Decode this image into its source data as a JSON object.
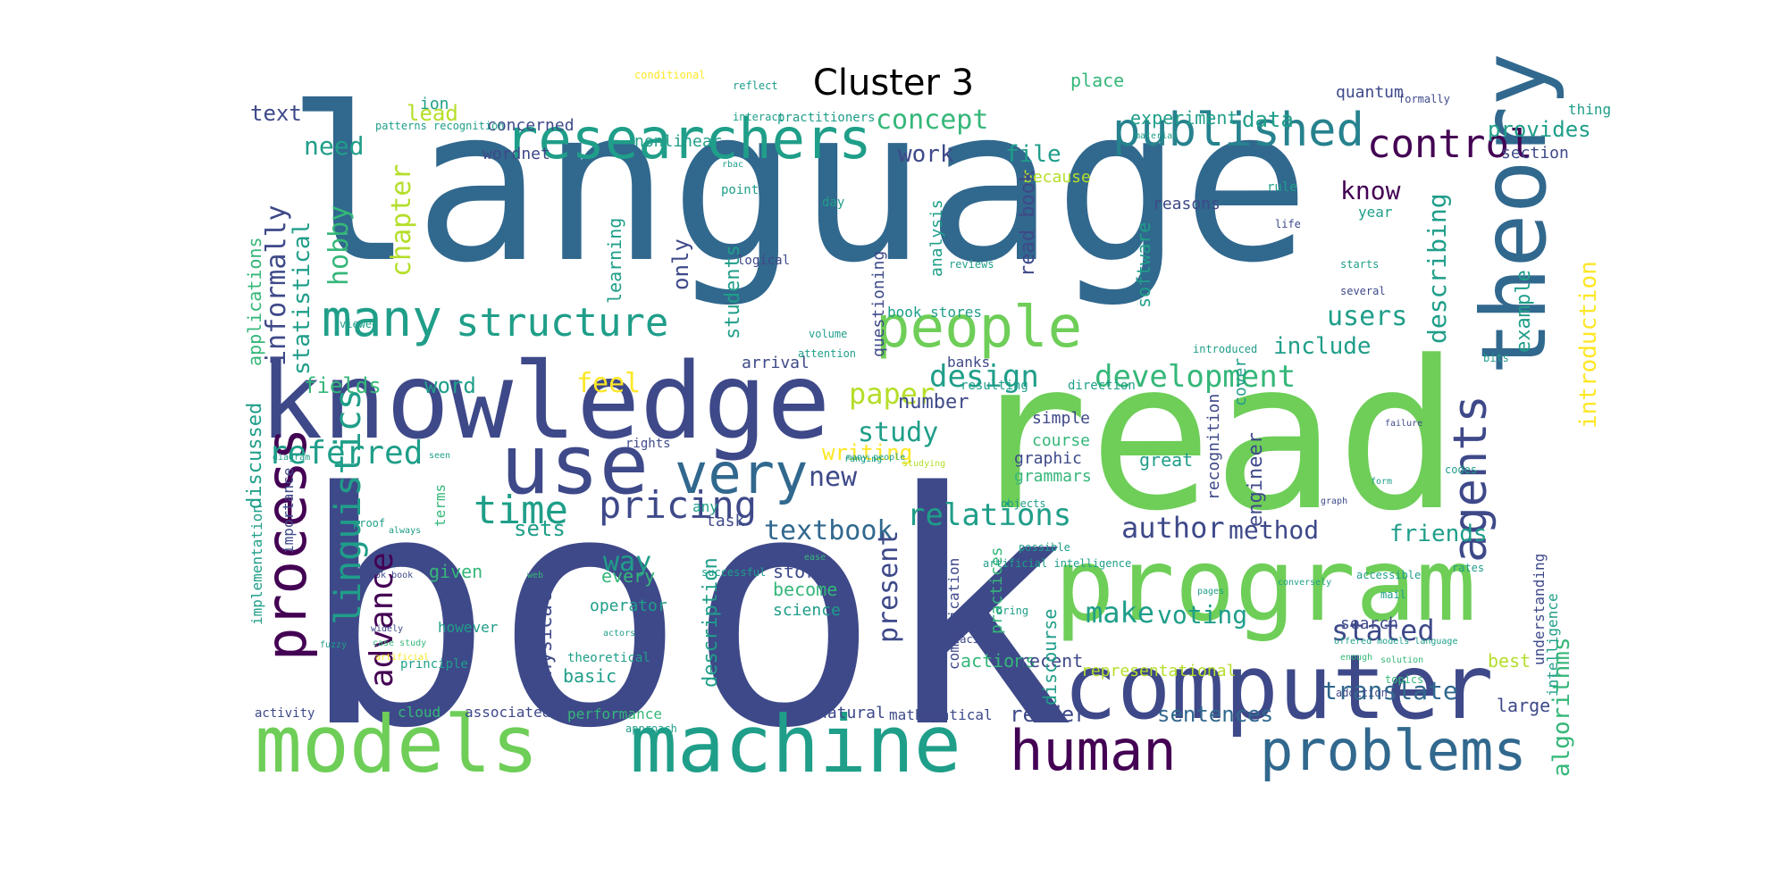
{
  "title": "Cluster 3",
  "colors": {
    "dark_purple": "#440154",
    "indigo": "#3e4989",
    "blue": "#31688e",
    "teal": "#26828e",
    "green_teal": "#1f9e89",
    "green": "#35b779",
    "light_green": "#6ece58",
    "lime": "#b5de2b",
    "yellow": "#fde725"
  },
  "words": [
    "language",
    "book",
    "read",
    "knowledge",
    "program",
    "computer",
    "models",
    "machine",
    "use",
    "theory",
    "researchers",
    "people",
    "published",
    "very",
    "many",
    "structure",
    "process",
    "human",
    "problems",
    "control",
    "agents",
    "time",
    "pricing",
    "linguistics",
    "referred",
    "advance",
    "textbook",
    "relations",
    "author",
    "design",
    "development",
    "stated",
    "present",
    "algorithms",
    "introduction",
    "concept",
    "work",
    "file",
    "informally",
    "hobby",
    "chapter",
    "statistical",
    "need",
    "lead",
    "text",
    "users",
    "include",
    "feel",
    "paper",
    "study",
    "new",
    "writing",
    "number",
    "fields",
    "word",
    "applications",
    "discussed",
    "implementation",
    "importance",
    "method",
    "friends",
    "make",
    "voting",
    "translate",
    "sentences",
    "reader",
    "natural",
    "mathematical",
    "associated",
    "cloud",
    "activity",
    "performance",
    "basic",
    "given",
    "way",
    "sets",
    "stores",
    "become",
    "science",
    "actions",
    "recent",
    "representational",
    "best",
    "large",
    "describing",
    "know",
    "example",
    "provides",
    "section",
    "data",
    "experiment",
    "quantum",
    "thing",
    "ion",
    "wordnet",
    "because",
    "year",
    "learning",
    "only",
    "students",
    "read book",
    "software",
    "reasons",
    "analysis",
    "questioning",
    "book stores",
    "arrival",
    "banks",
    "resulting",
    "direction",
    "simple",
    "course",
    "graphic",
    "grammars",
    "great",
    "engineer",
    "recognition",
    "cover",
    "understanding",
    "intelligence",
    "search",
    "communication",
    "practices",
    "discourse",
    "physical",
    "description",
    "every",
    "operator",
    "however",
    "terms",
    "principle",
    "day",
    "task",
    "any",
    "rights",
    "proof",
    "always",
    "diagram",
    "fuzzy",
    "widely",
    "case study",
    "artificial",
    "book book",
    "web",
    "actors",
    "theoretical",
    "complexity",
    "approach",
    "facility",
    "bring",
    "objects",
    "possible",
    "artificial intelligence",
    "pages",
    "accessible",
    "mail",
    "offered models language",
    "solution",
    "addition",
    "codes",
    "many people",
    "concerned",
    "nonlinear",
    "practitioners",
    "interact",
    "patterns recognition",
    "reflect",
    "conditional",
    "place",
    "formally",
    "material",
    "point",
    "rule",
    "life",
    "logical",
    "reviews",
    "introduced",
    "several",
    "starts",
    "volume",
    "attention",
    "failure",
    "viewed",
    "ranging",
    "studying",
    "rates",
    "topics",
    "bits",
    "form",
    "graph",
    "successful",
    "enough",
    "seen",
    "conversely",
    "ease",
    "rbac"
  ]
}
